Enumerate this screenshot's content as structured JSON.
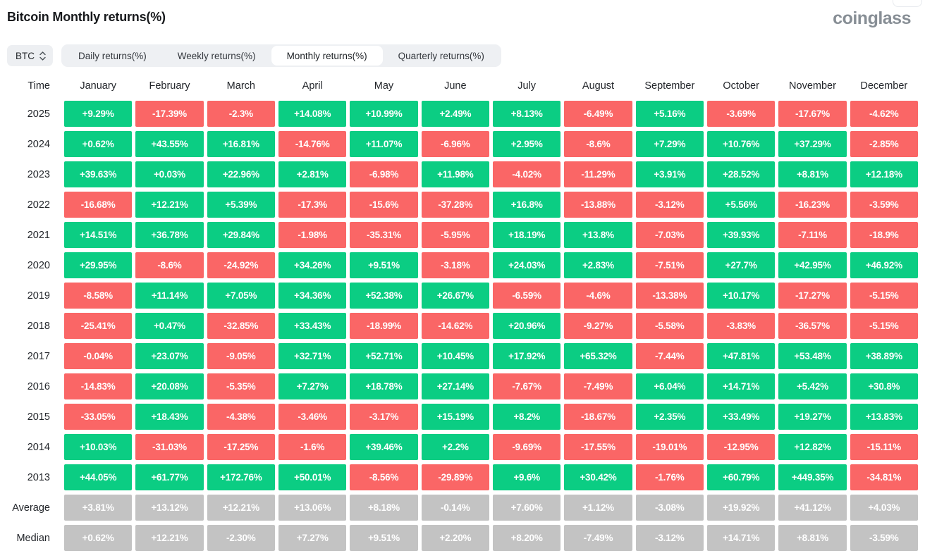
{
  "header": {
    "title": "Bitcoin Monthly returns(%)",
    "brand": "coinglass"
  },
  "controls": {
    "coin_selector": {
      "value": "BTC"
    },
    "tabs": [
      {
        "label": "Daily returns(%)",
        "active": false
      },
      {
        "label": "Weekly returns(%)",
        "active": false
      },
      {
        "label": "Monthly returns(%)",
        "active": true
      },
      {
        "label": "Quarterly returns(%)",
        "active": false
      }
    ]
  },
  "chart_data": {
    "type": "heatmap",
    "title": "Bitcoin Monthly returns(%)",
    "columns": [
      "Time",
      "January",
      "February",
      "March",
      "April",
      "May",
      "June",
      "July",
      "August",
      "September",
      "October",
      "November",
      "December"
    ],
    "colors": {
      "positive": "#0bcd83",
      "negative": "#fa6666",
      "summary": "#c3c3c3",
      "cell_text": "#ffffff"
    },
    "rows": [
      {
        "label": "2025",
        "kind": "year",
        "values": [
          "+9.29%",
          "-17.39%",
          "-2.3%",
          "+14.08%",
          "+10.99%",
          "+2.49%",
          "+8.13%",
          "-6.49%",
          "+5.16%",
          "-3.69%",
          "-17.67%",
          "-4.62%"
        ]
      },
      {
        "label": "2024",
        "kind": "year",
        "values": [
          "+0.62%",
          "+43.55%",
          "+16.81%",
          "-14.76%",
          "+11.07%",
          "-6.96%",
          "+2.95%",
          "-8.6%",
          "+7.29%",
          "+10.76%",
          "+37.29%",
          "-2.85%"
        ]
      },
      {
        "label": "2023",
        "kind": "year",
        "values": [
          "+39.63%",
          "+0.03%",
          "+22.96%",
          "+2.81%",
          "-6.98%",
          "+11.98%",
          "-4.02%",
          "-11.29%",
          "+3.91%",
          "+28.52%",
          "+8.81%",
          "+12.18%"
        ]
      },
      {
        "label": "2022",
        "kind": "year",
        "values": [
          "-16.68%",
          "+12.21%",
          "+5.39%",
          "-17.3%",
          "-15.6%",
          "-37.28%",
          "+16.8%",
          "-13.88%",
          "-3.12%",
          "+5.56%",
          "-16.23%",
          "-3.59%"
        ]
      },
      {
        "label": "2021",
        "kind": "year",
        "values": [
          "+14.51%",
          "+36.78%",
          "+29.84%",
          "-1.98%",
          "-35.31%",
          "-5.95%",
          "+18.19%",
          "+13.8%",
          "-7.03%",
          "+39.93%",
          "-7.11%",
          "-18.9%"
        ]
      },
      {
        "label": "2020",
        "kind": "year",
        "values": [
          "+29.95%",
          "-8.6%",
          "-24.92%",
          "+34.26%",
          "+9.51%",
          "-3.18%",
          "+24.03%",
          "+2.83%",
          "-7.51%",
          "+27.7%",
          "+42.95%",
          "+46.92%"
        ]
      },
      {
        "label": "2019",
        "kind": "year",
        "values": [
          "-8.58%",
          "+11.14%",
          "+7.05%",
          "+34.36%",
          "+52.38%",
          "+26.67%",
          "-6.59%",
          "-4.6%",
          "-13.38%",
          "+10.17%",
          "-17.27%",
          "-5.15%"
        ]
      },
      {
        "label": "2018",
        "kind": "year",
        "values": [
          "-25.41%",
          "+0.47%",
          "-32.85%",
          "+33.43%",
          "-18.99%",
          "-14.62%",
          "+20.96%",
          "-9.27%",
          "-5.58%",
          "-3.83%",
          "-36.57%",
          "-5.15%"
        ]
      },
      {
        "label": "2017",
        "kind": "year",
        "values": [
          "-0.04%",
          "+23.07%",
          "-9.05%",
          "+32.71%",
          "+52.71%",
          "+10.45%",
          "+17.92%",
          "+65.32%",
          "-7.44%",
          "+47.81%",
          "+53.48%",
          "+38.89%"
        ]
      },
      {
        "label": "2016",
        "kind": "year",
        "values": [
          "-14.83%",
          "+20.08%",
          "-5.35%",
          "+7.27%",
          "+18.78%",
          "+27.14%",
          "-7.67%",
          "-7.49%",
          "+6.04%",
          "+14.71%",
          "+5.42%",
          "+30.8%"
        ]
      },
      {
        "label": "2015",
        "kind": "year",
        "values": [
          "-33.05%",
          "+18.43%",
          "-4.38%",
          "-3.46%",
          "-3.17%",
          "+15.19%",
          "+8.2%",
          "-18.67%",
          "+2.35%",
          "+33.49%",
          "+19.27%",
          "+13.83%"
        ]
      },
      {
        "label": "2014",
        "kind": "year",
        "values": [
          "+10.03%",
          "-31.03%",
          "-17.25%",
          "-1.6%",
          "+39.46%",
          "+2.2%",
          "-9.69%",
          "-17.55%",
          "-19.01%",
          "-12.95%",
          "+12.82%",
          "-15.11%"
        ]
      },
      {
        "label": "2013",
        "kind": "year",
        "values": [
          "+44.05%",
          "+61.77%",
          "+172.76%",
          "+50.01%",
          "-8.56%",
          "-29.89%",
          "+9.6%",
          "+30.42%",
          "-1.76%",
          "+60.79%",
          "+449.35%",
          "-34.81%"
        ]
      },
      {
        "label": "Average",
        "kind": "summary",
        "values": [
          "+3.81%",
          "+13.12%",
          "+12.21%",
          "+13.06%",
          "+8.18%",
          "-0.14%",
          "+7.60%",
          "+1.12%",
          "-3.08%",
          "+19.92%",
          "+41.12%",
          "+4.03%"
        ]
      },
      {
        "label": "Median",
        "kind": "summary",
        "values": [
          "+0.62%",
          "+12.21%",
          "-2.30%",
          "+7.27%",
          "+9.51%",
          "+2.20%",
          "+8.20%",
          "-7.49%",
          "-3.12%",
          "+14.71%",
          "+8.81%",
          "-3.59%"
        ]
      }
    ]
  }
}
